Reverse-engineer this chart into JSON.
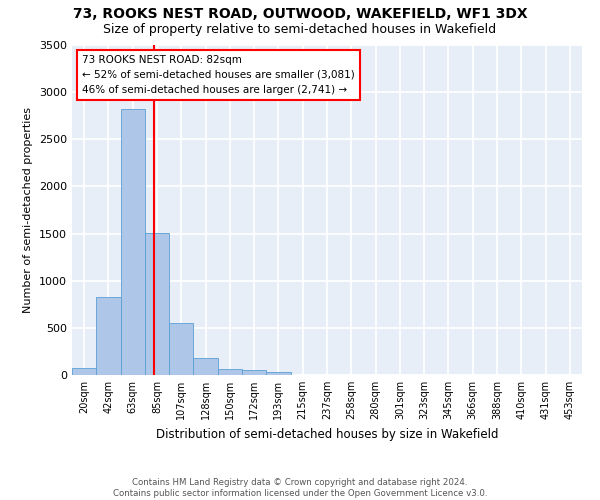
{
  "title": "73, ROOKS NEST ROAD, OUTWOOD, WAKEFIELD, WF1 3DX",
  "subtitle": "Size of property relative to semi-detached houses in Wakefield",
  "xlabel": "Distribution of semi-detached houses by size in Wakefield",
  "ylabel": "Number of semi-detached properties",
  "bar_labels": [
    "20sqm",
    "42sqm",
    "63sqm",
    "85sqm",
    "107sqm",
    "128sqm",
    "150sqm",
    "172sqm",
    "193sqm",
    "215sqm",
    "237sqm",
    "258sqm",
    "280sqm",
    "301sqm",
    "323sqm",
    "345sqm",
    "366sqm",
    "388sqm",
    "410sqm",
    "431sqm",
    "453sqm"
  ],
  "bar_values": [
    70,
    830,
    2820,
    1510,
    550,
    185,
    65,
    50,
    35,
    0,
    0,
    0,
    0,
    0,
    0,
    0,
    0,
    0,
    0,
    0,
    0
  ],
  "bar_color": "#aec6e8",
  "bar_edge_color": "#5a9fd4",
  "annotation_text": "73 ROOKS NEST ROAD: 82sqm\n← 52% of semi-detached houses are smaller (3,081)\n46% of semi-detached houses are larger (2,741) →",
  "annotation_box_color": "white",
  "annotation_box_edge": "red",
  "vline_color": "red",
  "ylim": [
    0,
    3500
  ],
  "yticks": [
    0,
    500,
    1000,
    1500,
    2000,
    2500,
    3000,
    3500
  ],
  "background_color": "#e8eef8",
  "grid_color": "white",
  "footer_text": "Contains HM Land Registry data © Crown copyright and database right 2024.\nContains public sector information licensed under the Open Government Licence v3.0.",
  "title_fontsize": 10,
  "subtitle_fontsize": 9,
  "xlabel_fontsize": 8.5,
  "ylabel_fontsize": 8
}
